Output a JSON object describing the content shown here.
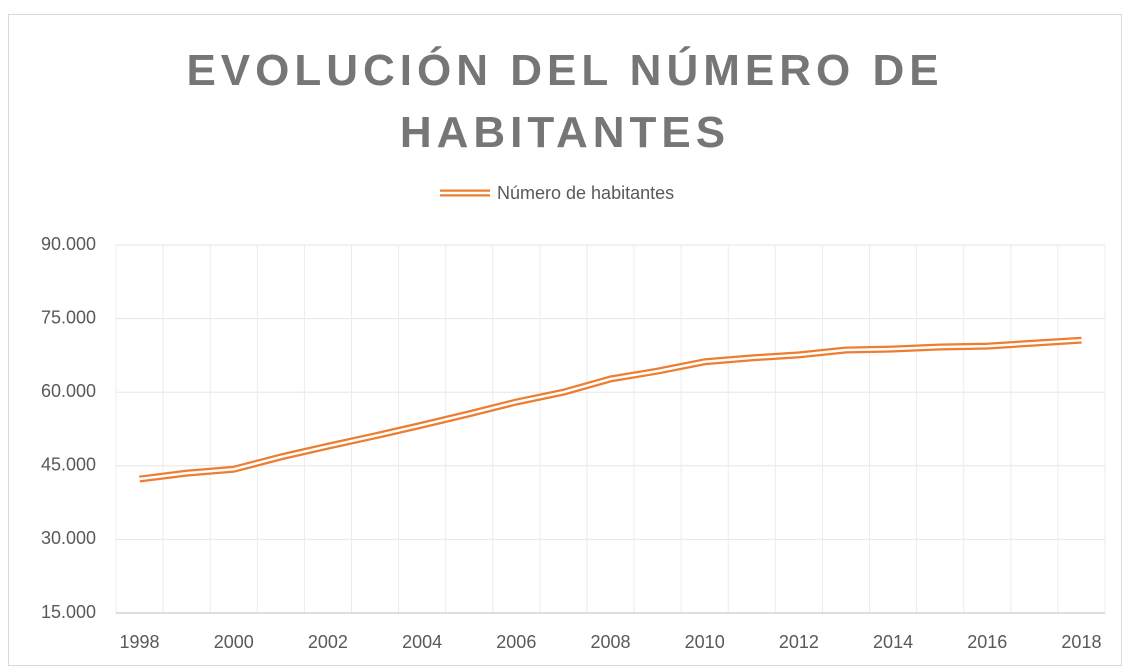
{
  "chart_data": {
    "type": "line",
    "title": "EVOLUCIÓN DEL NÚMERO DE HABITANTES",
    "categories": [
      "1998",
      null,
      "2000",
      null,
      "2002",
      null,
      "2004",
      null,
      "2006",
      null,
      "2008",
      null,
      "2010",
      null,
      "2012",
      null,
      "2014",
      null,
      "2016",
      null,
      "2018"
    ],
    "series": [
      {
        "name": "Número de habitantes",
        "color": "#ed7d31",
        "values": [
          42300,
          43500,
          44300,
          46800,
          49000,
          51100,
          53300,
          55600,
          58000,
          60000,
          62700,
          64300,
          66200,
          67000,
          67600,
          68600,
          68800,
          69200,
          69400,
          70000,
          70600
        ]
      }
    ],
    "ylim": [
      15000,
      90000
    ],
    "yticks": [
      {
        "value": 15000,
        "label": "15.000"
      },
      {
        "value": 30000,
        "label": "30.000"
      },
      {
        "value": 45000,
        "label": "45.000"
      },
      {
        "value": 60000,
        "label": "60.000"
      },
      {
        "value": 75000,
        "label": "75.000"
      },
      {
        "value": 90000,
        "label": "90.000"
      }
    ],
    "grid": true,
    "legend": "top"
  }
}
